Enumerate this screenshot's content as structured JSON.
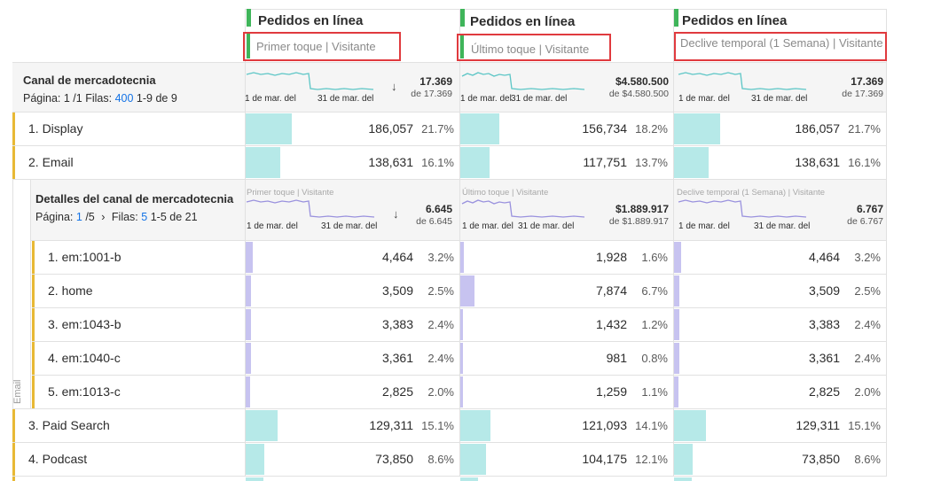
{
  "columns": [
    {
      "metric": "Pedidos en línea",
      "model": "Primer toque | Visitante"
    },
    {
      "metric": "Pedidos en línea",
      "model": "Último toque | Visitante"
    },
    {
      "metric": "Pedidos en línea",
      "model": "Declive temporal (1 Semana) | Visitante"
    }
  ],
  "dimension": {
    "title": "Canal de mercadotecnia",
    "page_prefix": "Página: 1 /1",
    "rows_label": "Filas:",
    "rows_value": "400",
    "range": "1-9 de 9"
  },
  "spark_labels": {
    "start": "1 de mar. del",
    "end": "31 de mar. del"
  },
  "totals": [
    {
      "value": "17.369",
      "of": "de 17.369"
    },
    {
      "value": "$4.580.500",
      "of": "de $4.580.500"
    },
    {
      "value": "17.369",
      "of": "de 17.369"
    }
  ],
  "top_rows_a": [
    {
      "label": "1. Display",
      "cells": [
        {
          "v": "186,057",
          "p": "21.7%",
          "f": 0.217
        },
        {
          "v": "156,734",
          "p": "18.2%",
          "f": 0.182
        },
        {
          "v": "186,057",
          "p": "21.7%",
          "f": 0.217
        }
      ]
    },
    {
      "label": "2. Email",
      "cells": [
        {
          "v": "138,631",
          "p": "16.1%",
          "f": 0.161
        },
        {
          "v": "117,751",
          "p": "13.7%",
          "f": 0.137
        },
        {
          "v": "138,631",
          "p": "16.1%",
          "f": 0.161
        }
      ]
    }
  ],
  "breakdown": {
    "side_label": "Email",
    "title": "Detalles del canal de mercadotecnia",
    "page_prefix": "Página:",
    "page_current": "1",
    "page_total": "/5",
    "rows_label": "Filas:",
    "rows_value": "5",
    "range": "1-5 de 21",
    "totals": [
      {
        "value": "6.645",
        "of": "de 6.645"
      },
      {
        "value": "$1.889.917",
        "of": "de $1.889.917"
      },
      {
        "value": "6.767",
        "of": "de 6.767"
      }
    ],
    "rows": [
      {
        "label": "1. em:1001-b",
        "cells": [
          {
            "v": "4,464",
            "p": "3.2%",
            "f": 0.032
          },
          {
            "v": "1,928",
            "p": "1.6%",
            "f": 0.016
          },
          {
            "v": "4,464",
            "p": "3.2%",
            "f": 0.032
          }
        ]
      },
      {
        "label": "2. home",
        "cells": [
          {
            "v": "3,509",
            "p": "2.5%",
            "f": 0.025
          },
          {
            "v": "7,874",
            "p": "6.7%",
            "f": 0.067
          },
          {
            "v": "3,509",
            "p": "2.5%",
            "f": 0.025
          }
        ]
      },
      {
        "label": "3. em:1043-b",
        "cells": [
          {
            "v": "3,383",
            "p": "2.4%",
            "f": 0.024
          },
          {
            "v": "1,432",
            "p": "1.2%",
            "f": 0.012
          },
          {
            "v": "3,383",
            "p": "2.4%",
            "f": 0.024
          }
        ]
      },
      {
        "label": "4. em:1040-c",
        "cells": [
          {
            "v": "3,361",
            "p": "2.4%",
            "f": 0.024
          },
          {
            "v": "981",
            "p": "0.8%",
            "f": 0.008
          },
          {
            "v": "3,361",
            "p": "2.4%",
            "f": 0.024
          }
        ]
      },
      {
        "label": "5. em:1013-c",
        "cells": [
          {
            "v": "2,825",
            "p": "2.0%",
            "f": 0.02
          },
          {
            "v": "1,259",
            "p": "1.1%",
            "f": 0.011
          },
          {
            "v": "2,825",
            "p": "2.0%",
            "f": 0.02
          }
        ]
      }
    ]
  },
  "top_rows_b": [
    {
      "label": "3. Paid Search",
      "cells": [
        {
          "v": "129,311",
          "p": "15.1%",
          "f": 0.151
        },
        {
          "v": "121,093",
          "p": "14.1%",
          "f": 0.141
        },
        {
          "v": "129,311",
          "p": "15.1%",
          "f": 0.151
        }
      ]
    },
    {
      "label": "4. Podcast",
      "cells": [
        {
          "v": "73,850",
          "p": "8.6%",
          "f": 0.086
        },
        {
          "v": "104,175",
          "p": "12.1%",
          "f": 0.121
        },
        {
          "v": "73,850",
          "p": "8.6%",
          "f": 0.086
        }
      ]
    }
  ],
  "colors": {
    "bar_top": "#b6e9e8",
    "bar_breakdown": "#c7c3f0",
    "spark_top": "#5cc6c6",
    "spark_breakdown": "#9a92de",
    "accent_yellow": "#e8b935",
    "highlight_red": "#e03a3e",
    "column_green": "#3fb55a"
  }
}
